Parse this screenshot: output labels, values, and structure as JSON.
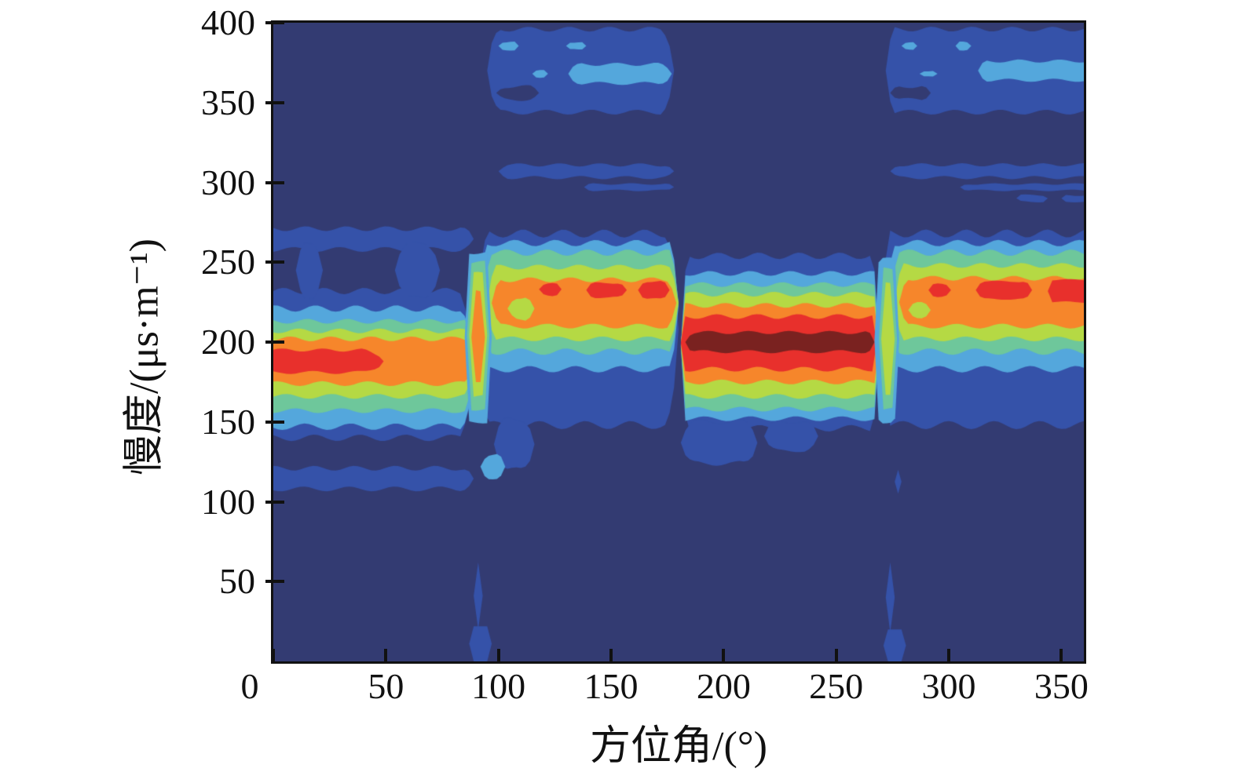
{
  "chart_data": {
    "type": "heatmap",
    "title": "",
    "xlabel": "方位角/(°)",
    "ylabel": "慢度/(μs·m⁻¹)",
    "xlim": [
      0,
      360
    ],
    "ylim": [
      0,
      400
    ],
    "x_ticks": [
      0,
      50,
      100,
      150,
      200,
      250,
      300,
      350
    ],
    "y_ticks": [
      400,
      350,
      300,
      250,
      200,
      150,
      100,
      50
    ],
    "grid": false,
    "legend_position": "none",
    "colormap_levels": [
      {
        "name": "bg",
        "hex": "#333b72",
        "rank": 0
      },
      {
        "name": "royal",
        "hex": "#3552a9",
        "rank": 1
      },
      {
        "name": "sky",
        "hex": "#54a7dc",
        "rank": 2
      },
      {
        "name": "seafoam",
        "hex": "#6ec79b",
        "rank": 3
      },
      {
        "name": "ygreen",
        "hex": "#b5d944",
        "rank": 4
      },
      {
        "name": "orange",
        "hex": "#f6862b",
        "rank": 5
      },
      {
        "name": "red",
        "hex": "#e8302c",
        "rank": 6
      },
      {
        "name": "maroon",
        "hex": "#7a2220",
        "rank": 7
      }
    ],
    "background_level": "bg",
    "frame_color": "#111111",
    "bands": [
      {
        "level": "royal",
        "az": [
          0,
          89
        ],
        "s": [
          140,
          232
        ],
        "w": 4,
        "t": 6
      },
      {
        "level": "sky",
        "az": [
          0,
          89
        ],
        "s": [
          147,
          221
        ],
        "w": 4,
        "t": 5
      },
      {
        "level": "seafoam",
        "az": [
          0,
          89
        ],
        "s": [
          157,
          213
        ],
        "w": 3,
        "t": 4
      },
      {
        "level": "ygreen",
        "az": [
          0,
          89
        ],
        "s": [
          166,
          207
        ],
        "w": 3,
        "t": 4
      },
      {
        "level": "orange",
        "az": [
          0,
          89
        ],
        "s": [
          174,
          202
        ],
        "w": 3,
        "t": 4
      },
      {
        "level": "red",
        "az": [
          0,
          49
        ],
        "s": [
          181,
          195
        ],
        "w": 2,
        "t": 9
      },
      {
        "level": "royal",
        "az": [
          0,
          89
        ],
        "s": [
          108,
          121
        ],
        "w": 3,
        "t": 5
      },
      {
        "level": "royal",
        "az": [
          0,
          89
        ],
        "s": [
          258,
          271
        ],
        "w": 3,
        "t": 5
      },
      {
        "level": "royal",
        "az": [
          10,
          22
        ],
        "s": [
          228,
          262
        ],
        "w": 2,
        "t": 4
      },
      {
        "level": "royal",
        "az": [
          54,
          74
        ],
        "s": [
          228,
          262
        ],
        "w": 2,
        "t": 6
      },
      {
        "level": "royal",
        "az": [
          90,
          180
        ],
        "s": [
          148,
          268
        ],
        "w": 5,
        "t": 5
      },
      {
        "level": "sky",
        "az": [
          91,
          180
        ],
        "s": [
          183,
          262
        ],
        "w": 4,
        "t": 4
      },
      {
        "level": "seafoam",
        "az": [
          93,
          180
        ],
        "s": [
          194,
          256
        ],
        "w": 4,
        "t": 4
      },
      {
        "level": "ygreen",
        "az": [
          95,
          180
        ],
        "s": [
          202,
          247
        ],
        "w": 3,
        "t": 4
      },
      {
        "level": "orange",
        "az": [
          97,
          179
        ],
        "s": [
          210,
          239
        ],
        "w": 3,
        "t": 4
      },
      {
        "level": "red",
        "az": [
          118,
          128
        ],
        "s": [
          229,
          237
        ],
        "w": 1,
        "t": 3
      },
      {
        "level": "red",
        "az": [
          139,
          157
        ],
        "s": [
          228,
          237
        ],
        "w": 1,
        "t": 3
      },
      {
        "level": "red",
        "az": [
          162,
          176
        ],
        "s": [
          227,
          238
        ],
        "w": 1,
        "t": 3
      },
      {
        "level": "ygreen",
        "az": [
          104,
          116
        ],
        "s": [
          214,
          228
        ],
        "w": 2,
        "t": 4
      },
      {
        "level": "royal",
        "az": [
          95,
          178
        ],
        "s": [
          344,
          396
        ],
        "w": 3,
        "t": 5
      },
      {
        "level": "sky",
        "az": [
          100,
          109
        ],
        "s": [
          383,
          388
        ],
        "w": 1,
        "t": 2
      },
      {
        "level": "sky",
        "az": [
          130,
          139
        ],
        "s": [
          383,
          388
        ],
        "w": 1,
        "t": 2
      },
      {
        "level": "sky",
        "az": [
          115,
          122
        ],
        "s": [
          366,
          370
        ],
        "w": 1,
        "t": 2
      },
      {
        "level": "sky",
        "az": [
          131,
          177
        ],
        "s": [
          362,
          374
        ],
        "w": 2,
        "t": 5
      },
      {
        "level": "bg",
        "az": [
          99,
          118
        ],
        "s": [
          352,
          360
        ],
        "w": 2,
        "t": 4
      },
      {
        "level": "royal",
        "az": [
          100,
          178
        ],
        "s": [
          303,
          311
        ],
        "w": 2,
        "t": 4
      },
      {
        "level": "royal",
        "az": [
          138,
          178
        ],
        "s": [
          295,
          299
        ],
        "w": 1,
        "t": 3
      },
      {
        "level": "royal",
        "az": [
          98,
          116
        ],
        "s": [
          120,
          152
        ],
        "w": 3,
        "t": 5
      },
      {
        "level": "sky",
        "az": [
          85,
          97
        ],
        "s": [
          150,
          256
        ],
        "w": 2,
        "t": 2
      },
      {
        "level": "seafoam",
        "az": [
          86,
          96
        ],
        "s": [
          158,
          250
        ],
        "w": 2,
        "t": 2
      },
      {
        "level": "ygreen",
        "az": [
          87,
          95
        ],
        "s": [
          166,
          243
        ],
        "w": 2,
        "t": 2
      },
      {
        "level": "orange",
        "az": [
          88,
          94
        ],
        "s": [
          174,
          232
        ],
        "w": 2,
        "t": 2
      },
      {
        "level": "sky",
        "az": [
          92,
          103
        ],
        "s": [
          115,
          129
        ],
        "w": 2,
        "t": 3
      },
      {
        "level": "royal",
        "az": [
          89,
          93
        ],
        "s": [
          20,
          62
        ],
        "w": 0,
        "t": 1
      },
      {
        "level": "royal",
        "az": [
          87,
          97
        ],
        "s": [
          0,
          22
        ],
        "w": 0,
        "t": 1
      },
      {
        "level": "royal",
        "az": [
          181,
          269
        ],
        "s": [
          146,
          254
        ],
        "w": 4,
        "t": 3
      },
      {
        "level": "sky",
        "az": [
          181,
          269
        ],
        "s": [
          152,
          243
        ],
        "w": 3,
        "t": 2
      },
      {
        "level": "seafoam",
        "az": [
          181,
          269
        ],
        "s": [
          158,
          236
        ],
        "w": 3,
        "t": 2
      },
      {
        "level": "ygreen",
        "az": [
          181,
          269
        ],
        "s": [
          166,
          230
        ],
        "w": 3,
        "t": 2
      },
      {
        "level": "orange",
        "az": [
          181,
          269
        ],
        "s": [
          175,
          223
        ],
        "w": 3,
        "t": 2
      },
      {
        "level": "red",
        "az": [
          181,
          268
        ],
        "s": [
          183,
          216
        ],
        "w": 3,
        "t": 2
      },
      {
        "level": "maroon",
        "az": [
          183,
          267
        ],
        "s": [
          194,
          206
        ],
        "w": 2,
        "t": 3
      },
      {
        "level": "royal",
        "az": [
          181,
          215
        ],
        "s": [
          124,
          150
        ],
        "w": 3,
        "t": 5
      },
      {
        "level": "royal",
        "az": [
          218,
          242
        ],
        "s": [
          132,
          150
        ],
        "w": 2,
        "t": 5
      },
      {
        "level": "royal",
        "az": [
          270,
          360
        ],
        "s": [
          148,
          268
        ],
        "w": 5,
        "t": 4
      },
      {
        "level": "sky",
        "az": [
          272,
          360
        ],
        "s": [
          183,
          262
        ],
        "w": 4,
        "t": 4
      },
      {
        "level": "seafoam",
        "az": [
          274,
          360
        ],
        "s": [
          194,
          256
        ],
        "w": 4,
        "t": 4
      },
      {
        "level": "ygreen",
        "az": [
          276,
          360
        ],
        "s": [
          202,
          248
        ],
        "w": 3,
        "t": 4
      },
      {
        "level": "orange",
        "az": [
          278,
          360
        ],
        "s": [
          210,
          240
        ],
        "w": 3,
        "t": 4
      },
      {
        "level": "red",
        "az": [
          291,
          301
        ],
        "s": [
          228,
          237
        ],
        "w": 1,
        "t": 3
      },
      {
        "level": "red",
        "az": [
          312,
          337
        ],
        "s": [
          227,
          238
        ],
        "w": 1,
        "t": 3
      },
      {
        "level": "red",
        "az": [
          344,
          360
        ],
        "s": [
          225,
          239
        ],
        "w": 1,
        "t": 2
      },
      {
        "level": "ygreen",
        "az": [
          282,
          292
        ],
        "s": [
          214,
          226
        ],
        "w": 2,
        "t": 4
      },
      {
        "level": "royal",
        "az": [
          272,
          360
        ],
        "s": [
          344,
          396
        ],
        "w": 3,
        "t": 4
      },
      {
        "level": "sky",
        "az": [
          279,
          286
        ],
        "s": [
          383,
          388
        ],
        "w": 1,
        "t": 2
      },
      {
        "level": "sky",
        "az": [
          303,
          310
        ],
        "s": [
          383,
          388
        ],
        "w": 1,
        "t": 2
      },
      {
        "level": "sky",
        "az": [
          287,
          295
        ],
        "s": [
          366,
          370
        ],
        "w": 1,
        "t": 2
      },
      {
        "level": "sky",
        "az": [
          313,
          360
        ],
        "s": [
          364,
          376
        ],
        "w": 2,
        "t": 4
      },
      {
        "level": "bg",
        "az": [
          274,
          292
        ],
        "s": [
          352,
          360
        ],
        "w": 2,
        "t": 4
      },
      {
        "level": "royal",
        "az": [
          274,
          360
        ],
        "s": [
          303,
          311
        ],
        "w": 2,
        "t": 4
      },
      {
        "level": "royal",
        "az": [
          305,
          360
        ],
        "s": [
          295,
          299
        ],
        "w": 1,
        "t": 3
      },
      {
        "level": "royal",
        "az": [
          330,
          344
        ],
        "s": [
          288,
          292
        ],
        "w": 1,
        "t": 2
      },
      {
        "level": "royal",
        "az": [
          350,
          360
        ],
        "s": [
          288,
          292
        ],
        "w": 1,
        "t": 2
      },
      {
        "level": "sky",
        "az": [
          267,
          278
        ],
        "s": [
          150,
          252
        ],
        "w": 2,
        "t": 2
      },
      {
        "level": "seafoam",
        "az": [
          269,
          277
        ],
        "s": [
          158,
          246
        ],
        "w": 2,
        "t": 2
      },
      {
        "level": "ygreen",
        "az": [
          270,
          276
        ],
        "s": [
          166,
          238
        ],
        "w": 2,
        "t": 2
      },
      {
        "level": "royal",
        "az": [
          276,
          279
        ],
        "s": [
          105,
          120
        ],
        "w": 0,
        "t": 1
      },
      {
        "level": "royal",
        "az": [
          272,
          276
        ],
        "s": [
          18,
          62
        ],
        "w": 0,
        "t": 1
      },
      {
        "level": "royal",
        "az": [
          271,
          281
        ],
        "s": [
          0,
          20
        ],
        "w": 0,
        "t": 1
      }
    ]
  }
}
